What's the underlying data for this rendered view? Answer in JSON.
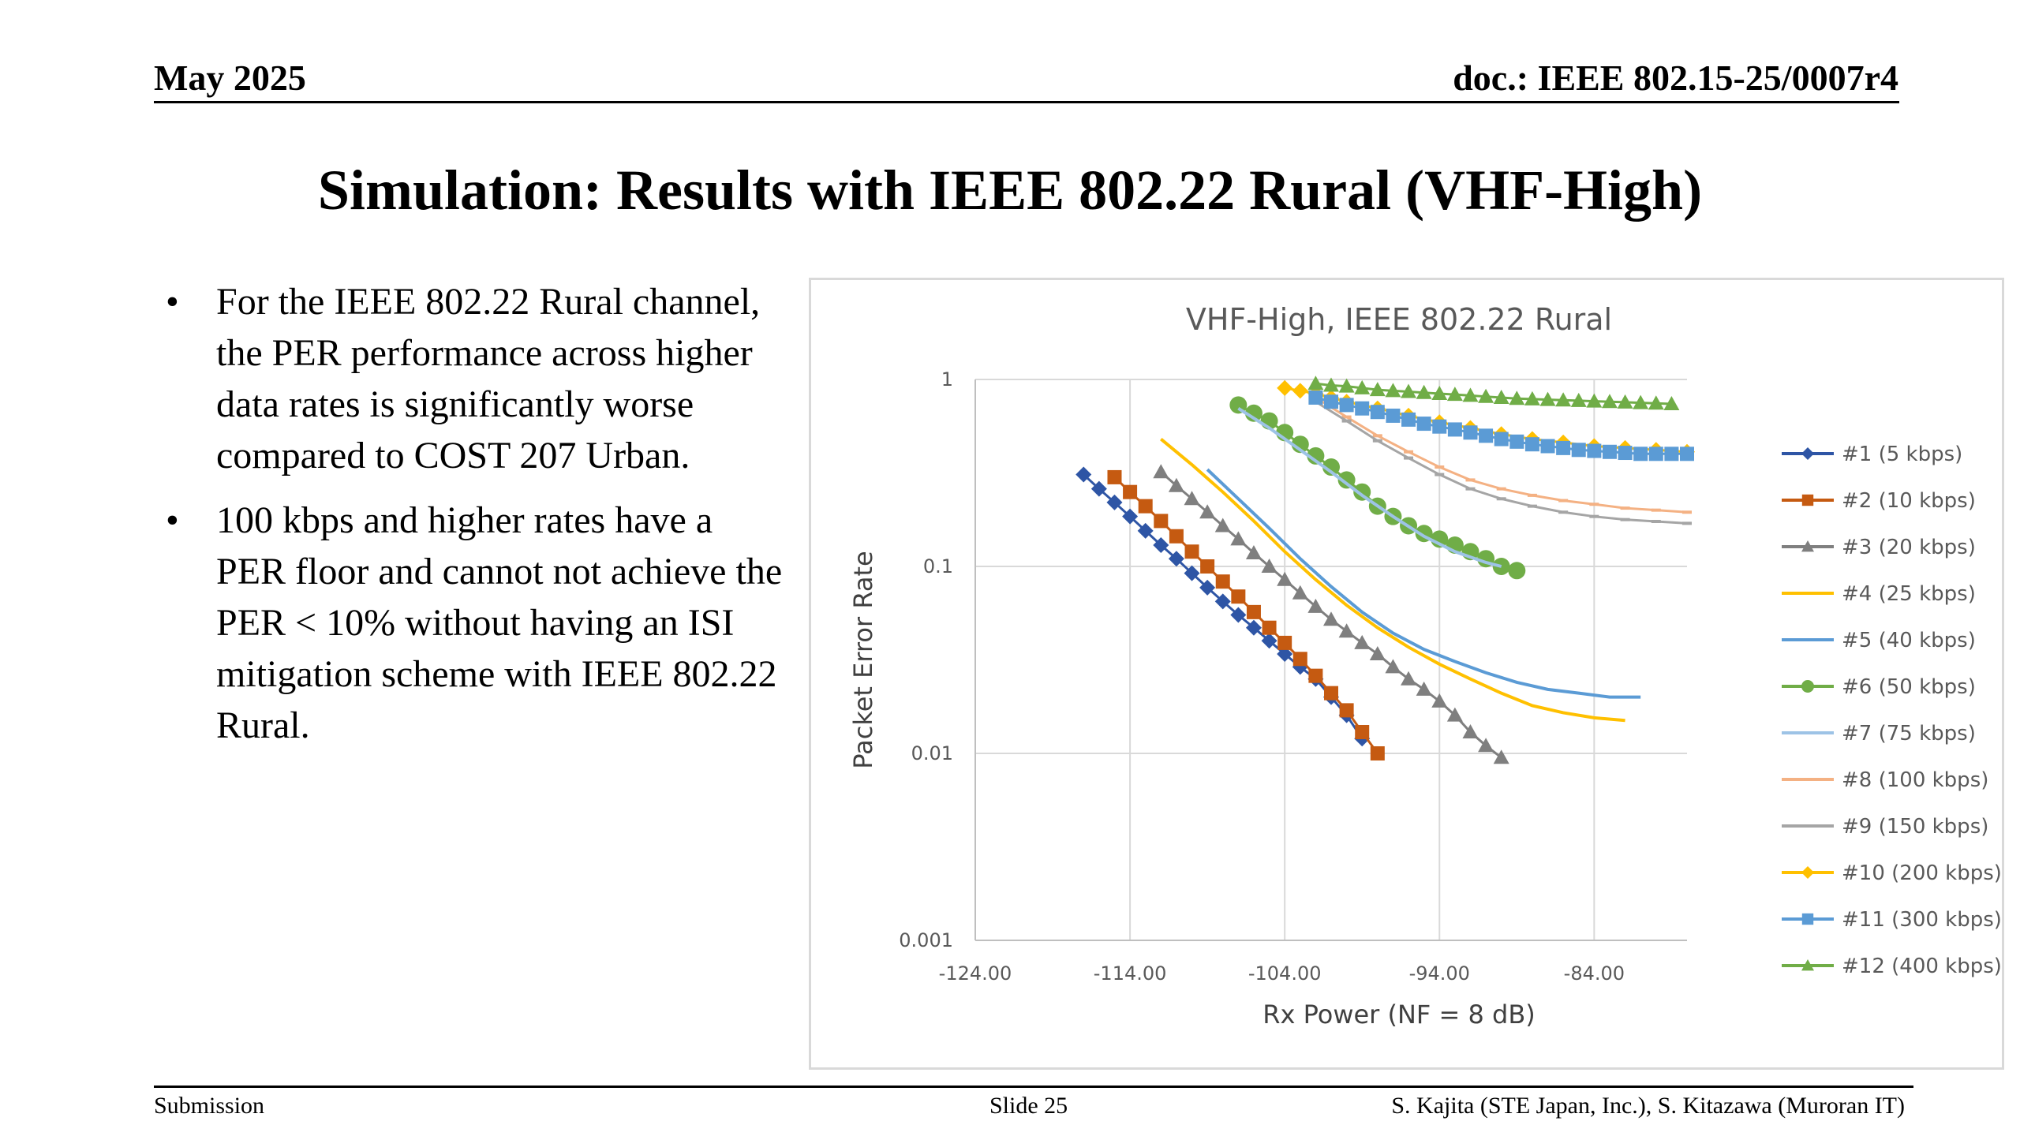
{
  "header": {
    "date": "May 2025",
    "doc_id": "doc.: IEEE 802.15-25/0007r4"
  },
  "title": "Simulation: Results with IEEE 802.22 Rural (VHF-High)",
  "bullets": [
    {
      "marker": "•",
      "text": "For the IEEE 802.22 Rural channel, the PER performance across higher data rates is significantly worse compared to COST 207 Urban."
    },
    {
      "marker": "•",
      "text": "100 kbps and higher rates have a PER floor and cannot not achieve the PER < 10% without having an ISI mitigation scheme with IEEE 802.22 Rural."
    }
  ],
  "footer": {
    "left": "Submission",
    "center": "Slide 25",
    "right": "S. Kajita (STE Japan, Inc.), S. Kitazawa (Muroran IT)"
  },
  "chart_data": {
    "type": "line",
    "title": "VHF-High, IEEE 802.22 Rural",
    "xlabel": "Rx Power (NF = 8 dB)",
    "ylabel": "Packet Error Rate",
    "xlim": [
      -124,
      -78
    ],
    "ylim": [
      0.001,
      1
    ],
    "yscale": "log",
    "grid": true,
    "legend_position": "right",
    "x_ticks": [
      -124,
      -114,
      -104,
      -94,
      -84
    ],
    "x_tick_labels": [
      "-124.00",
      "-114.00",
      "-104.00",
      "-94.00",
      "-84.00"
    ],
    "y_ticks": [
      1,
      0.1,
      0.01,
      0.001
    ],
    "y_tick_labels": [
      "1",
      "0.1",
      "0.01",
      "0.001"
    ],
    "series": [
      {
        "name": "#1 (5 kbps)",
        "color": "#2e55a5",
        "marker": "diamond",
        "x": [
          -117,
          -116,
          -115,
          -114,
          -113,
          -112,
          -111,
          -110,
          -109,
          -108,
          -107,
          -106,
          -105,
          -104,
          -103,
          -102,
          -101,
          -100,
          -99
        ],
        "y": [
          0.31,
          0.26,
          0.22,
          0.185,
          0.155,
          0.13,
          0.11,
          0.092,
          0.077,
          0.065,
          0.055,
          0.047,
          0.04,
          0.034,
          0.029,
          0.025,
          0.02,
          0.016,
          0.012
        ]
      },
      {
        "name": "#2 (10 kbps)",
        "color": "#c55a11",
        "marker": "square",
        "x": [
          -115,
          -114,
          -113,
          -112,
          -111,
          -110,
          -109,
          -108,
          -107,
          -106,
          -105,
          -104,
          -103,
          -102,
          -101,
          -100,
          -99,
          -98
        ],
        "y": [
          0.3,
          0.25,
          0.21,
          0.175,
          0.145,
          0.12,
          0.1,
          0.083,
          0.069,
          0.057,
          0.047,
          0.039,
          0.032,
          0.026,
          0.021,
          0.017,
          0.013,
          0.01
        ]
      },
      {
        "name": "#3 (20 kbps)",
        "color": "#7f7f7f",
        "marker": "triangle",
        "x": [
          -112,
          -111,
          -110,
          -109,
          -108,
          -107,
          -106,
          -105,
          -104,
          -103,
          -102,
          -101,
          -100,
          -99,
          -98,
          -97,
          -96,
          -95,
          -94,
          -93,
          -92,
          -91,
          -90
        ],
        "y": [
          0.32,
          0.27,
          0.23,
          0.195,
          0.165,
          0.14,
          0.118,
          0.1,
          0.085,
          0.072,
          0.061,
          0.052,
          0.045,
          0.039,
          0.034,
          0.029,
          0.025,
          0.022,
          0.019,
          0.016,
          0.013,
          0.011,
          0.0095
        ]
      },
      {
        "name": "#4 (25 kbps)",
        "color": "#ffc000",
        "marker": "none",
        "x": [
          -112,
          -110,
          -108,
          -106,
          -104,
          -102,
          -100,
          -98,
          -96,
          -94,
          -92,
          -90,
          -88,
          -86,
          -84,
          -82
        ],
        "y": [
          0.48,
          0.35,
          0.25,
          0.175,
          0.12,
          0.085,
          0.062,
          0.047,
          0.037,
          0.03,
          0.025,
          0.021,
          0.018,
          0.0165,
          0.0155,
          0.015
        ]
      },
      {
        "name": "#5 (40 kbps)",
        "color": "#5b9bd5",
        "marker": "none",
        "x": [
          -109,
          -107,
          -105,
          -103,
          -101,
          -99,
          -97,
          -95,
          -93,
          -91,
          -89,
          -87,
          -85,
          -83,
          -81
        ],
        "y": [
          0.33,
          0.23,
          0.16,
          0.11,
          0.078,
          0.057,
          0.044,
          0.036,
          0.031,
          0.027,
          0.024,
          0.022,
          0.021,
          0.02,
          0.02
        ]
      },
      {
        "name": "#6 (50 kbps)",
        "color": "#70ad47",
        "marker": "circle",
        "x": [
          -107,
          -106,
          -105,
          -104,
          -103,
          -102,
          -101,
          -100,
          -99,
          -98,
          -97,
          -96,
          -95,
          -94,
          -93,
          -92,
          -91,
          -90,
          -89
        ],
        "y": [
          0.73,
          0.66,
          0.6,
          0.52,
          0.45,
          0.39,
          0.34,
          0.29,
          0.25,
          0.21,
          0.185,
          0.165,
          0.15,
          0.14,
          0.13,
          0.12,
          0.11,
          0.1,
          0.095
        ]
      },
      {
        "name": "#7 (75 kbps)",
        "color": "#9dc3e6",
        "marker": "none",
        "x": [
          -107,
          -105,
          -103,
          -101,
          -99,
          -97,
          -95,
          -93,
          -91,
          -90
        ],
        "y": [
          0.7,
          0.55,
          0.42,
          0.32,
          0.24,
          0.185,
          0.145,
          0.12,
          0.105,
          0.1
        ]
      },
      {
        "name": "#8 (100 kbps)",
        "color": "#f4b183",
        "marker": "dash",
        "x": [
          -102,
          -100,
          -98,
          -96,
          -94,
          -92,
          -90,
          -88,
          -86,
          -84,
          -82,
          -80,
          -78
        ],
        "y": [
          0.8,
          0.63,
          0.5,
          0.41,
          0.34,
          0.29,
          0.26,
          0.24,
          0.225,
          0.215,
          0.205,
          0.2,
          0.195
        ]
      },
      {
        "name": "#9 (150 kbps)",
        "color": "#a5a5a5",
        "marker": "dash",
        "x": [
          -102,
          -100,
          -98,
          -96,
          -94,
          -92,
          -90,
          -88,
          -86,
          -84,
          -82,
          -80,
          -78
        ],
        "y": [
          0.76,
          0.6,
          0.47,
          0.38,
          0.31,
          0.26,
          0.23,
          0.21,
          0.195,
          0.185,
          0.178,
          0.174,
          0.17
        ]
      },
      {
        "name": "#10 (200 kbps)",
        "color": "#ffc000",
        "marker": "diamond",
        "x": [
          -104,
          -103,
          -102,
          -101,
          -100,
          -98,
          -96,
          -94,
          -92,
          -90,
          -88,
          -86,
          -84,
          -82,
          -80,
          -78
        ],
        "y": [
          0.9,
          0.87,
          0.84,
          0.8,
          0.76,
          0.7,
          0.64,
          0.59,
          0.55,
          0.51,
          0.48,
          0.46,
          0.44,
          0.43,
          0.42,
          0.41
        ]
      },
      {
        "name": "#11 (300 kbps)",
        "color": "#5b9bd5",
        "marker": "square",
        "x": [
          -102,
          -101,
          -100,
          -99,
          -98,
          -97,
          -96,
          -95,
          -94,
          -93,
          -92,
          -91,
          -90,
          -89,
          -88,
          -87,
          -86,
          -85,
          -84,
          -83,
          -82,
          -81,
          -80,
          -79,
          -78
        ],
        "y": [
          0.8,
          0.76,
          0.73,
          0.7,
          0.67,
          0.64,
          0.61,
          0.58,
          0.56,
          0.54,
          0.52,
          0.5,
          0.48,
          0.465,
          0.45,
          0.44,
          0.43,
          0.42,
          0.415,
          0.41,
          0.405,
          0.4,
          0.4,
          0.4,
          0.4
        ]
      },
      {
        "name": "#12 (400 kbps)",
        "color": "#70ad47",
        "marker": "triangle",
        "x": [
          -102,
          -101,
          -100,
          -99,
          -98,
          -97,
          -96,
          -95,
          -94,
          -93,
          -92,
          -91,
          -90,
          -89,
          -88,
          -87,
          -86,
          -85,
          -84,
          -83,
          -82,
          -81,
          -80,
          -79
        ],
        "y": [
          0.95,
          0.93,
          0.92,
          0.9,
          0.88,
          0.87,
          0.86,
          0.85,
          0.84,
          0.83,
          0.82,
          0.81,
          0.8,
          0.79,
          0.785,
          0.78,
          0.775,
          0.77,
          0.765,
          0.76,
          0.755,
          0.75,
          0.745,
          0.74
        ]
      }
    ]
  }
}
